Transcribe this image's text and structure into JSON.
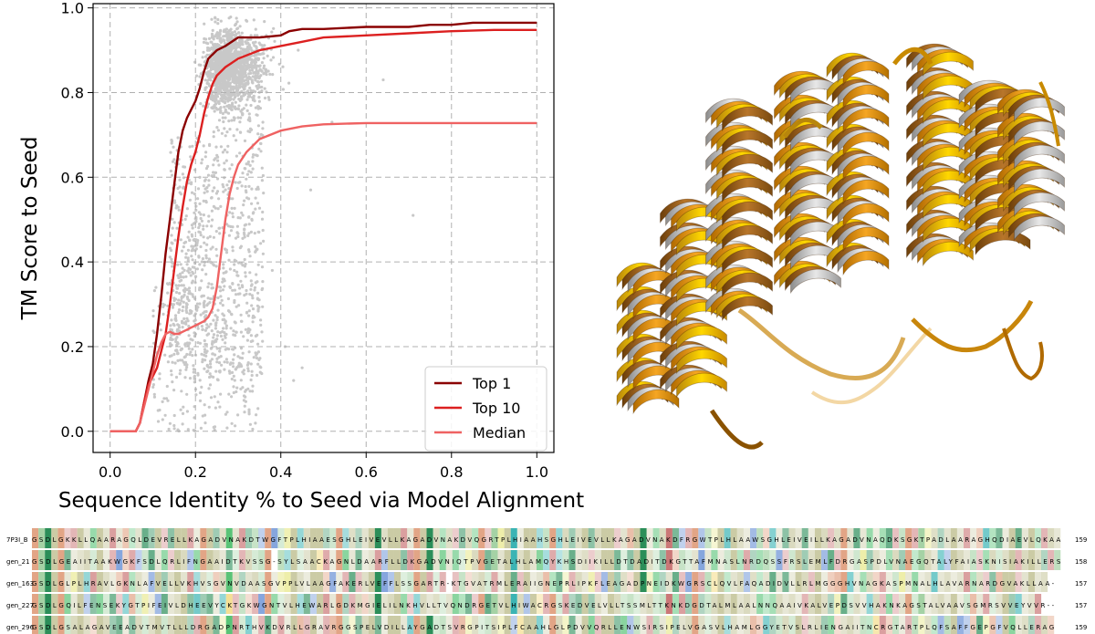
{
  "chart_data": {
    "type": "line",
    "xlabel": "Sequence Identity % to Seed via Model Alignment",
    "ylabel": "TM Score to Seed",
    "xlim": [
      -0.04,
      1.04
    ],
    "ylim": [
      -0.05,
      1.01
    ],
    "xticks": [
      "0.0",
      "0.2",
      "0.4",
      "0.6",
      "0.8",
      "1.0"
    ],
    "yticks": [
      "0.0",
      "0.2",
      "0.4",
      "0.6",
      "0.8",
      "1.0"
    ],
    "grid": true,
    "legend_position": "lower-right",
    "series": [
      {
        "name": "Top 1",
        "color": "#8b0000",
        "x": [
          0,
          0.06,
          0.07,
          0.08,
          0.09,
          0.1,
          0.11,
          0.12,
          0.13,
          0.14,
          0.15,
          0.16,
          0.17,
          0.18,
          0.2,
          0.21,
          0.22,
          0.23,
          0.25,
          0.27,
          0.3,
          0.35,
          0.4,
          0.42,
          0.45,
          0.5,
          0.6,
          0.7,
          0.75,
          0.8,
          0.85,
          0.9,
          1.0
        ],
        "y": [
          0,
          0.0,
          0.02,
          0.07,
          0.12,
          0.16,
          0.23,
          0.32,
          0.42,
          0.5,
          0.58,
          0.66,
          0.71,
          0.74,
          0.78,
          0.81,
          0.85,
          0.88,
          0.9,
          0.91,
          0.93,
          0.93,
          0.935,
          0.945,
          0.95,
          0.95,
          0.955,
          0.955,
          0.96,
          0.96,
          0.965,
          0.965,
          0.965
        ]
      },
      {
        "name": "Top 10",
        "color": "#dc2020",
        "x": [
          0,
          0.06,
          0.07,
          0.08,
          0.09,
          0.1,
          0.11,
          0.12,
          0.13,
          0.14,
          0.15,
          0.16,
          0.17,
          0.18,
          0.19,
          0.2,
          0.21,
          0.22,
          0.23,
          0.24,
          0.25,
          0.27,
          0.3,
          0.35,
          0.4,
          0.45,
          0.5,
          0.6,
          0.7,
          0.8,
          0.9,
          1.0
        ],
        "y": [
          0,
          0.0,
          0.02,
          0.07,
          0.11,
          0.13,
          0.15,
          0.19,
          0.23,
          0.3,
          0.38,
          0.46,
          0.53,
          0.59,
          0.63,
          0.66,
          0.7,
          0.75,
          0.79,
          0.82,
          0.84,
          0.86,
          0.88,
          0.9,
          0.91,
          0.92,
          0.93,
          0.935,
          0.94,
          0.945,
          0.948,
          0.948
        ]
      },
      {
        "name": "Median",
        "color": "#ef6262",
        "x": [
          0,
          0.06,
          0.07,
          0.08,
          0.09,
          0.1,
          0.11,
          0.12,
          0.13,
          0.14,
          0.15,
          0.16,
          0.17,
          0.18,
          0.19,
          0.2,
          0.21,
          0.22,
          0.23,
          0.24,
          0.25,
          0.26,
          0.27,
          0.28,
          0.29,
          0.3,
          0.32,
          0.35,
          0.4,
          0.45,
          0.5,
          0.6,
          0.8,
          1.0
        ],
        "y": [
          0,
          0.0,
          0.02,
          0.06,
          0.1,
          0.14,
          0.18,
          0.21,
          0.23,
          0.235,
          0.23,
          0.23,
          0.235,
          0.24,
          0.245,
          0.25,
          0.255,
          0.26,
          0.27,
          0.29,
          0.34,
          0.42,
          0.5,
          0.56,
          0.6,
          0.63,
          0.66,
          0.69,
          0.71,
          0.72,
          0.725,
          0.728,
          0.728,
          0.728
        ]
      }
    ]
  },
  "alignment": {
    "rows": [
      {
        "name": "7P3I_B",
        "seq": "GSDLGKKLLQAARAGQLDEVRELLKAGADVNAKDTWGFTPLHIAAESGHLEIVEVLLKAGADVNAKDVQGRTPLHIAAHSGHLEIVEVLLKAGADVNAKDFRGWTPLHLAAWSGHLEIVEILLKAGADVNAQDKSGKTPADLAARAGHQDIAEVLQKAA",
        "count": "159"
      },
      {
        "name": "gen_21",
        "seq": "GSDLGEAIITAAKWGKFSDLQRLIFNGAAIDTKVSSG-SYLSAACKAGNLDAARFLLDKGADVNIQTPVGETALHLAMQYKHSDIIKILLDTDADITDKGTTAFMNASLNRDQSSFRSLEMLFDRGASPDLVNAEGQTALYFAIASKNISIAKILLERS",
        "count": "158"
      },
      {
        "name": "gen_163",
        "seq": "GSDLGLPLHRAVLGKNLAFVELLVKHVSGVNVDAASGVPPLVLAAGFAKERLVEFFLSSGARTR-KTGVATRMLERAIIGNEPRLIPKFLEAGADPNEIDKWGRSCLQVLFAQADIDVLLRLMGGGHVNAGKASPMNALHLAVARNARDGVAKLLAA-",
        "count": "157"
      },
      {
        "name": "gen_227",
        "seq": "GSDLGQILFENSEKYGTPIFEIVLDHEEVYCKTGKWGNTVLHEWARLGDKMGIELILNKHVLLTVQNDRGETVLHIWACRGSKEDVELVLLTSSMLTTKNKDGDTALMLAALNNQAAIVKALVEPDSVVHAKNKAGSTALVAAVSGMRSVVEYVVR--",
        "count": "157"
      },
      {
        "name": "gen_296",
        "seq": "GSDLGSALAGAVEEADVTMVTLLLDRGADPNRTHVKDVRLLGRAVRGGSPELVDILLAYGADTSVRGPITSIPLFCAAHLGLPDVVQRLLENWSIRSIPELVGASVLHAMLGGYETVSLRLIENGAIITNCRGTARTPLQFSAFFGEPGFVQLLERAG",
        "count": "159"
      }
    ]
  }
}
